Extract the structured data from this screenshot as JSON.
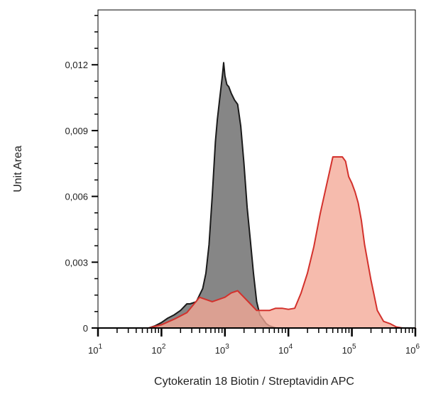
{
  "chart_data": {
    "type": "area",
    "xlabel": "Cytokeratin 18 Biotin / Streptavidin APC",
    "ylabel": "Unit Area",
    "x_scale": "log",
    "xlim": [
      1,
      6
    ],
    "ylim": [
      0,
      0.0145
    ],
    "x_ticks": [
      {
        "base": "10",
        "exp": "1",
        "value": 1
      },
      {
        "base": "10",
        "exp": "2",
        "value": 2
      },
      {
        "base": "10",
        "exp": "3",
        "value": 3
      },
      {
        "base": "10",
        "exp": "4",
        "value": 4
      },
      {
        "base": "10",
        "exp": "5",
        "value": 5
      },
      {
        "base": "10",
        "exp": "6",
        "value": 6
      }
    ],
    "y_ticks": [
      {
        "label": "0",
        "value": 0
      },
      {
        "label": "0,003",
        "value": 0.003
      },
      {
        "label": "0,006",
        "value": 0.006
      },
      {
        "label": "0,009",
        "value": 0.009
      },
      {
        "label": "0,012",
        "value": 0.012
      }
    ],
    "series": [
      {
        "fill": "#808080",
        "stroke": "#1a1a1a",
        "x": [
          1.3,
          1.6,
          1.8,
          1.9,
          2.0,
          2.1,
          2.2,
          2.3,
          2.4,
          2.45,
          2.5,
          2.55,
          2.6,
          2.65,
          2.7,
          2.75,
          2.8,
          2.85,
          2.88,
          2.92,
          2.96,
          2.98,
          3.0,
          3.03,
          3.06,
          3.1,
          3.15,
          3.2,
          3.25,
          3.3,
          3.35,
          3.4,
          3.45,
          3.5,
          3.55,
          3.6,
          3.65,
          3.7,
          3.8,
          3.9
        ],
        "y": [
          0,
          0,
          0,
          0.0001,
          0.00025,
          0.00045,
          0.0006,
          0.0008,
          0.0011,
          0.0011,
          0.00115,
          0.0012,
          0.0015,
          0.0018,
          0.0025,
          0.0038,
          0.006,
          0.0085,
          0.0095,
          0.0105,
          0.0115,
          0.0121,
          0.0115,
          0.0111,
          0.011,
          0.0107,
          0.0104,
          0.0102,
          0.0092,
          0.0075,
          0.0055,
          0.004,
          0.0025,
          0.0012,
          0.0006,
          0.0004,
          0.0002,
          0.0001,
          0,
          0
        ]
      },
      {
        "fill": "#f4a896",
        "stroke": "#d3312c",
        "x": [
          1.3,
          1.8,
          2.0,
          2.2,
          2.4,
          2.6,
          2.8,
          3.0,
          3.1,
          3.2,
          3.3,
          3.4,
          3.5,
          3.6,
          3.7,
          3.8,
          3.9,
          4.0,
          4.1,
          4.2,
          4.3,
          4.4,
          4.5,
          4.6,
          4.7,
          4.8,
          4.85,
          4.9,
          4.95,
          5.0,
          5.05,
          5.1,
          5.15,
          5.2,
          5.3,
          5.4,
          5.5,
          5.6,
          5.7,
          5.8,
          5.9,
          6.0
        ],
        "y": [
          0,
          0,
          0.00015,
          0.0004,
          0.0007,
          0.0014,
          0.0012,
          0.0014,
          0.0016,
          0.0017,
          0.0014,
          0.0011,
          0.0008,
          0.0008,
          0.0008,
          0.0009,
          0.0009,
          0.00085,
          0.0009,
          0.0016,
          0.0025,
          0.0037,
          0.0052,
          0.0065,
          0.0078,
          0.0078,
          0.0078,
          0.0076,
          0.0069,
          0.0066,
          0.0062,
          0.0057,
          0.0049,
          0.0038,
          0.0022,
          0.0008,
          0.0003,
          0.0002,
          5e-05,
          0,
          0,
          0
        ]
      }
    ]
  }
}
